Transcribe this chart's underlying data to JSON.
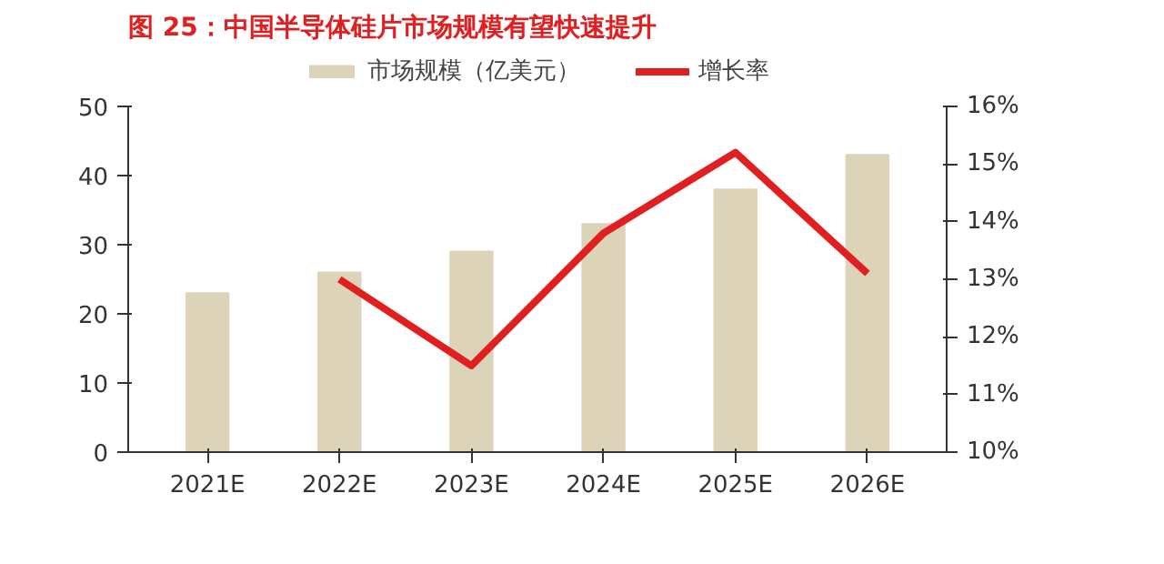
{
  "chart_data": {
    "type": "bar",
    "title": "图 25：中国半导体硅片市场规模有望快速提升",
    "categories": [
      "2021E",
      "2022E",
      "2023E",
      "2024E",
      "2025E",
      "2026E"
    ],
    "series": [
      {
        "name": "市场规模（亿美元）",
        "type": "bar",
        "color": "#ddd3b8",
        "values": [
          23,
          26,
          29,
          33,
          38,
          43
        ]
      },
      {
        "name": "增长率",
        "type": "line",
        "axis": "y2",
        "color": "#e02020",
        "values": [
          null,
          13.0,
          11.5,
          13.8,
          15.2,
          13.1
        ]
      }
    ],
    "ylim": [
      0,
      50
    ],
    "yticks": [
      0,
      10,
      20,
      30,
      40,
      50
    ],
    "y2lim": [
      10,
      16
    ],
    "y2ticks": [
      {
        "value": 10,
        "label": "10%"
      },
      {
        "value": 11,
        "label": "11%"
      },
      {
        "value": 12,
        "label": "12%"
      },
      {
        "value": 13,
        "label": "13%"
      },
      {
        "value": 14,
        "label": "14%"
      },
      {
        "value": 15,
        "label": "15%"
      },
      {
        "value": 16,
        "label": "16%"
      }
    ],
    "grid": false,
    "legend": "top"
  }
}
